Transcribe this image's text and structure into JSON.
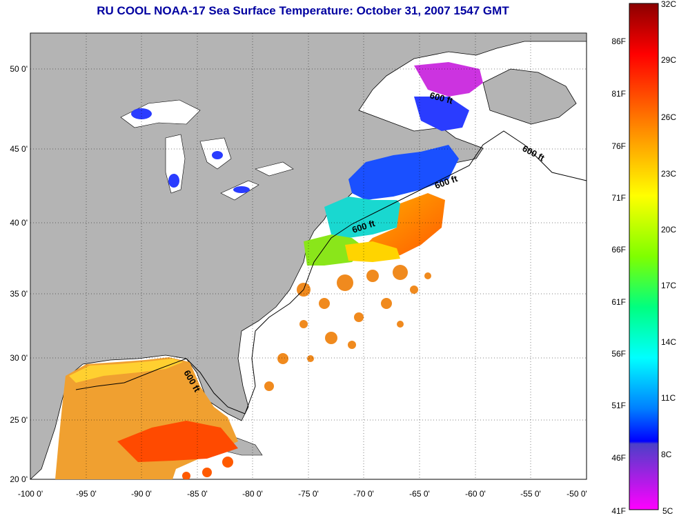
{
  "title": "RU COOL  NOAA-17  Sea Surface Temperature:  October 31, 2007 1547 GMT",
  "map": {
    "lon_range": [
      -100,
      -50
    ],
    "lat_range": [
      20,
      52.5
    ],
    "lon_ticks": [
      "-100 0'",
      "-95 0'",
      "-90 0'",
      "-85 0'",
      "-80 0'",
      "-75 0'",
      "-70 0'",
      "-65 0'",
      "-60 0'",
      "-55 0'",
      "-50 0'"
    ],
    "lat_ticks": [
      "20 0'",
      "25 0'",
      "30 0'",
      "35 0'",
      "40 0'",
      "45 0'",
      "50 0'"
    ],
    "contour_label": "600 ft",
    "colors": {
      "land": "#b4b4b4",
      "ocean_nodata": "#ffffff"
    }
  },
  "colorbar": {
    "fahrenheit_labels": [
      "86F",
      "81F",
      "76F",
      "71F",
      "66F",
      "61F",
      "56F",
      "51F",
      "46F",
      "41F"
    ],
    "celsius_labels": [
      "32C",
      "29C",
      "26C",
      "23C",
      "20C",
      "17C",
      "14C",
      "11C",
      "8C",
      "5C"
    ],
    "colors_top_to_bottom": [
      "#8b0000",
      "#ff0000",
      "#ff8c00",
      "#ffff00",
      "#7fff00",
      "#00ff80",
      "#00ffff",
      "#0080ff",
      "#0000ff",
      "#8000ff",
      "#ff00ff"
    ]
  }
}
